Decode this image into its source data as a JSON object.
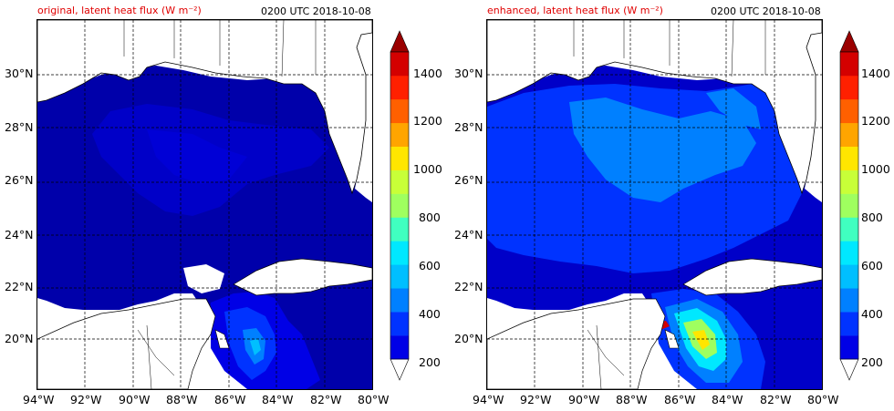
{
  "panels": [
    {
      "title": "original, latent heat flux (W m⁻²)",
      "time": "0200 UTC 2018-10-08",
      "field": "original"
    },
    {
      "title": "enhanced, latent heat flux (W m⁻²)",
      "time": "0200 UTC 2018-10-08",
      "field": "enhanced"
    }
  ],
  "lat_labels": [
    "30°N",
    "28°N",
    "26°N",
    "24°N",
    "22°N",
    "20°N"
  ],
  "lat_values": [
    30,
    28,
    26,
    24,
    22,
    20
  ],
  "lon_labels": [
    "94°W",
    "92°W",
    "90°W",
    "88°W",
    "86°W",
    "84°W",
    "82°W",
    "80°W"
  ],
  "lon_values": [
    -94,
    -92,
    -90,
    -88,
    -86,
    -84,
    -82,
    -80
  ],
  "extent": {
    "lon_min": -94,
    "lon_max": -80,
    "lat_min": 18,
    "lat_max": 32
  },
  "colorbar": {
    "tick_labels": [
      "1400",
      "1200",
      "1000",
      "800",
      "600",
      "400",
      "200"
    ],
    "tick_values": [
      1400,
      1200,
      1000,
      800,
      600,
      400,
      200
    ],
    "range": [
      200,
      1500
    ],
    "extend": "both",
    "colors": [
      "#00009f",
      "#0000e6",
      "#0033ff",
      "#0080ff",
      "#00bfff",
      "#00e8ff",
      "#40ffc0",
      "#9fff5f",
      "#c8ff38",
      "#ffe600",
      "#ffa500",
      "#ff6000",
      "#ff2000",
      "#d40000",
      "#9a0000"
    ]
  }
}
